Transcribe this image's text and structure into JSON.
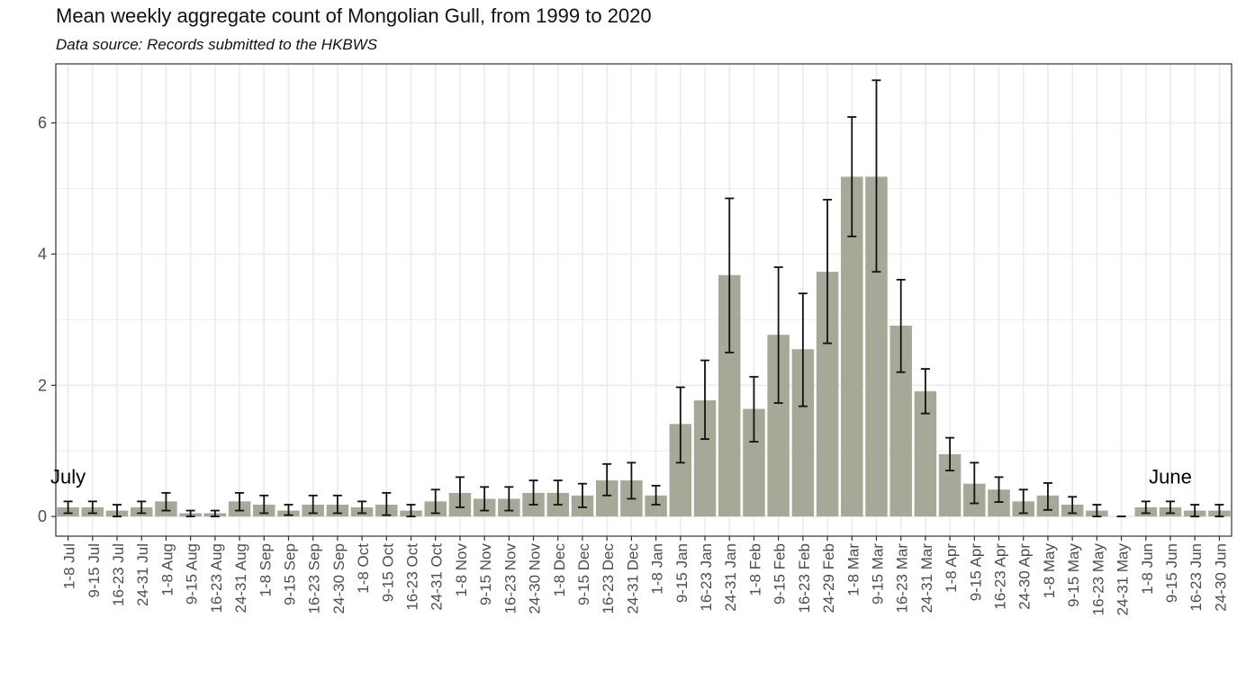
{
  "chart_data": {
    "type": "bar",
    "title": "Mean weekly aggregate count of Mongolian Gull, from 1999 to 2020",
    "subtitle": "Data source: Records submitted to the HKBWS",
    "xlabel": "",
    "ylabel": "",
    "ylim": [
      -0.3,
      6.9
    ],
    "yticks": [
      0,
      2,
      4,
      6
    ],
    "grid": true,
    "categories": [
      "1-8 Jul",
      "9-15 Jul",
      "16-23 Jul",
      "24-31 Jul",
      "1-8 Aug",
      "9-15 Aug",
      "16-23 Aug",
      "24-31 Aug",
      "1-8 Sep",
      "9-15 Sep",
      "16-23 Sep",
      "24-30 Sep",
      "1-8 Oct",
      "9-15 Oct",
      "16-23 Oct",
      "24-31 Oct",
      "1-8 Nov",
      "9-15 Nov",
      "16-23 Nov",
      "24-30 Nov",
      "1-8 Dec",
      "9-15 Dec",
      "16-23 Dec",
      "24-31 Dec",
      "1-8 Jan",
      "9-15 Jan",
      "16-23 Jan",
      "24-31 Jan",
      "1-8 Feb",
      "9-15 Feb",
      "16-23 Feb",
      "24-29 Feb",
      "1-8 Mar",
      "9-15 Mar",
      "16-23 Mar",
      "24-31 Mar",
      "1-8 Apr",
      "9-15 Apr",
      "16-23 Apr",
      "24-30 Apr",
      "1-8 May",
      "9-15 May",
      "16-23 May",
      "24-31 May",
      "1-8 Jun",
      "9-15 Jun",
      "16-23 Jun",
      "24-30 Jun"
    ],
    "values": [
      0.14,
      0.14,
      0.09,
      0.14,
      0.23,
      0.05,
      0.05,
      0.23,
      0.18,
      0.09,
      0.18,
      0.18,
      0.14,
      0.18,
      0.09,
      0.23,
      0.36,
      0.27,
      0.27,
      0.36,
      0.36,
      0.32,
      0.55,
      0.55,
      0.32,
      1.41,
      1.77,
      3.68,
      1.64,
      2.77,
      2.55,
      3.73,
      5.18,
      5.18,
      2.91,
      1.91,
      0.95,
      0.5,
      0.41,
      0.23,
      0.32,
      0.18,
      0.09,
      0.0,
      0.14,
      0.14,
      0.09,
      0.09
    ],
    "error_low": [
      0.05,
      0.05,
      0.0,
      0.05,
      0.09,
      0.0,
      0.0,
      0.09,
      0.05,
      0.02,
      0.05,
      0.05,
      0.05,
      0.02,
      0.0,
      0.05,
      0.14,
      0.09,
      0.09,
      0.18,
      0.18,
      0.14,
      0.32,
      0.27,
      0.18,
      0.82,
      1.18,
      2.5,
      1.14,
      1.73,
      1.68,
      2.64,
      4.27,
      3.73,
      2.2,
      1.57,
      0.7,
      0.2,
      0.22,
      0.05,
      0.1,
      0.05,
      0.0,
      0.0,
      0.05,
      0.05,
      0.0,
      0.0
    ],
    "error_high": [
      0.23,
      0.23,
      0.18,
      0.23,
      0.36,
      0.09,
      0.09,
      0.36,
      0.32,
      0.18,
      0.32,
      0.32,
      0.23,
      0.36,
      0.18,
      0.41,
      0.6,
      0.45,
      0.45,
      0.55,
      0.55,
      0.5,
      0.8,
      0.82,
      0.47,
      1.97,
      2.38,
      4.85,
      2.13,
      3.8,
      3.4,
      4.83,
      6.09,
      6.65,
      3.61,
      2.25,
      1.2,
      0.82,
      0.6,
      0.41,
      0.51,
      0.3,
      0.18,
      0.0,
      0.23,
      0.23,
      0.18,
      0.18
    ],
    "annotations": [
      {
        "text": "July",
        "category": "1-8 Jul",
        "y": 0.5
      },
      {
        "text": "June",
        "category": "9-15 Jun",
        "y": 0.5
      }
    ],
    "colors": {
      "bar": "#a7a998",
      "error": "#111111",
      "grid": "#ebebeb",
      "panel_border": "#333333",
      "tick_text": "#4d4d4d"
    }
  }
}
